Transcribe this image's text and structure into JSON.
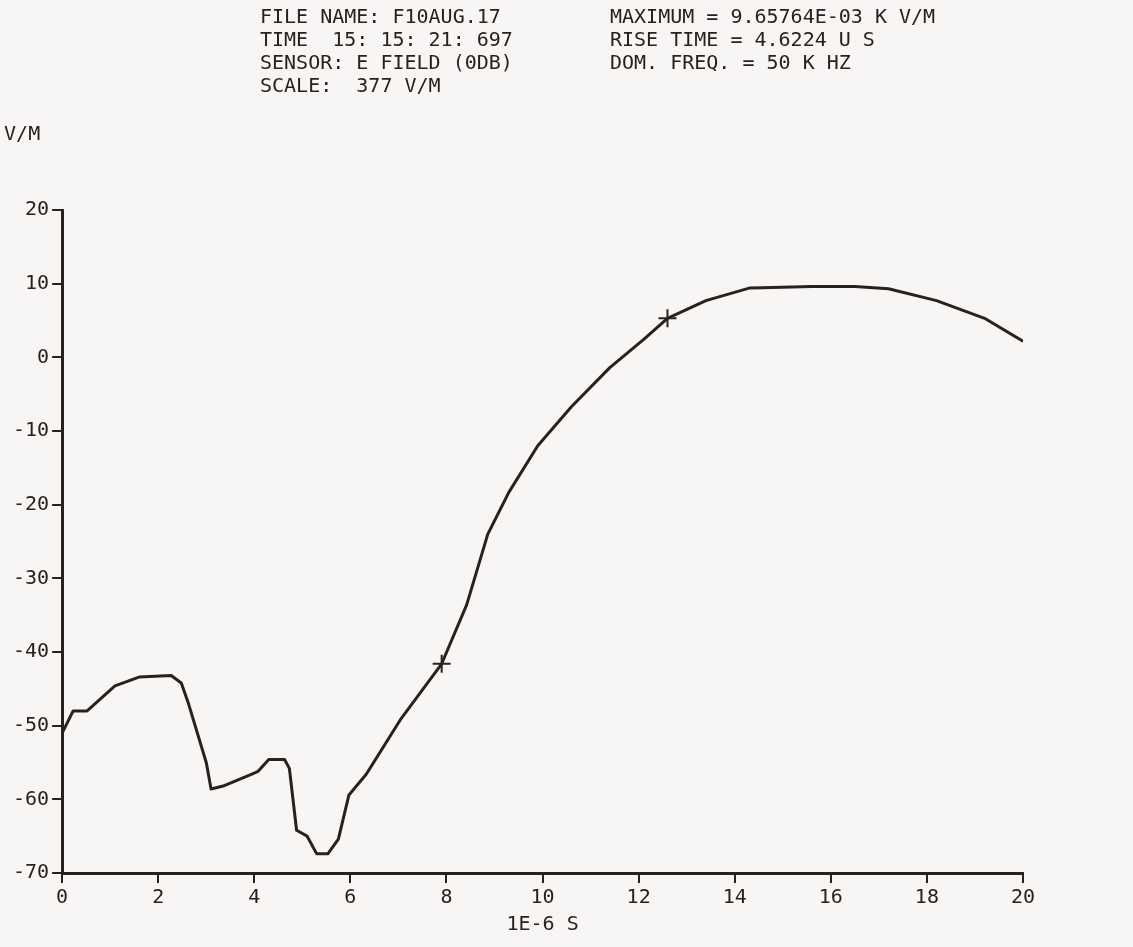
{
  "chart_data": {
    "type": "line",
    "xlabel": "1E-6 S",
    "ylabel": "V/M",
    "annotations": [
      "FILE NAME: F10AUG.17",
      "TIME  15: 15: 21: 697",
      "SENSOR: E FIELD (0DB)",
      "SCALE:  377 V/M",
      "MAXIMUM = 9.65764E-03 K V/M",
      "RISE TIME = 4.6224 U S",
      "DOM. FREQ. = 50 K HZ"
    ],
    "xlim": [
      0,
      20
    ],
    "ylim": [
      -70,
      20
    ],
    "xticks": [
      0,
      2,
      4,
      6,
      8,
      10,
      12,
      14,
      16,
      18,
      20
    ],
    "yticks": [
      -70,
      -60,
      -50,
      -40,
      -30,
      -20,
      -10,
      0,
      10,
      20
    ],
    "grid": false,
    "legend": false,
    "marker": "none",
    "line_style": "solid",
    "series": [
      {
        "color": "#2a2020",
        "x": [
          0,
          0.23,
          0.52,
          1.1,
          1.6,
          2.27,
          2.48,
          2.63,
          3.0,
          3.1,
          3.35,
          3.8,
          4.08,
          4.3,
          4.63,
          4.73,
          4.88,
          5.1,
          5.3,
          5.53,
          5.75,
          5.97,
          6.33,
          7.06,
          7.9,
          8.42,
          8.86,
          9.3,
          9.9,
          10.6,
          11.4,
          12.1,
          12.6,
          13.4,
          14.3,
          15.6,
          16.5,
          17.2,
          18.2,
          19.2,
          20
        ],
        "values": [
          -51,
          -48,
          -48,
          -44.6,
          -43.4,
          -43.2,
          -44.2,
          -47,
          -55,
          -58.6,
          -58.2,
          -57,
          -56.2,
          -54.6,
          -54.6,
          -55.8,
          -64.2,
          -65,
          -67.4,
          -67.4,
          -65.4,
          -59.4,
          -56.6,
          -49,
          -41.6,
          -33.6,
          -24,
          -18.3,
          -12,
          -6.7,
          -1.4,
          2.4,
          5.3,
          7.7,
          9.4,
          9.6,
          9.6,
          9.3,
          7.7,
          5.3,
          2.2
        ]
      },
      {
        "type": "scatter",
        "color": "#2a2020",
        "marker": "cross",
        "x": [
          7.9,
          12.6
        ],
        "values": [
          -41.6,
          5.3
        ]
      }
    ]
  }
}
